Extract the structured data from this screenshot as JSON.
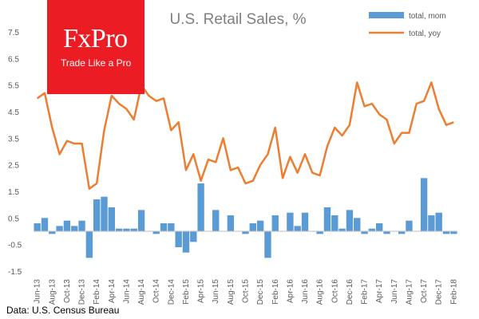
{
  "brand": {
    "name": "FxPro",
    "tagline": "Trade Like a Pro",
    "color": "#ec1c24"
  },
  "source": "Data: U.S. Census Bureau",
  "chart_data": {
    "type": "bar+line",
    "title": "U.S. Retail Sales, %",
    "ylim": [
      -1.5,
      7.5
    ],
    "yticks": [
      "7.5",
      "6.5",
      "5.5",
      "4.5",
      "3.5",
      "2.5",
      "1.5",
      "0.5",
      "-0.5",
      "-1.5"
    ],
    "ytick_values": [
      7.5,
      6.5,
      5.5,
      4.5,
      3.5,
      2.5,
      1.5,
      0.5,
      -0.5,
      -1.5
    ],
    "grid": false,
    "legend_position": "top-right",
    "categories": [
      "Jun-13",
      "Jul-13",
      "Aug-13",
      "Sep-13",
      "Oct-13",
      "Nov-13",
      "Dec-13",
      "Jan-14",
      "Feb-14",
      "Mar-14",
      "Apr-14",
      "May-14",
      "Jun-14",
      "Jul-14",
      "Aug-14",
      "Sep-14",
      "Oct-14",
      "Nov-14",
      "Dec-14",
      "Jan-15",
      "Feb-15",
      "Mar-15",
      "Apr-15",
      "May-15",
      "Jun-15",
      "Jul-15",
      "Aug-15",
      "Sep-15",
      "Oct-15",
      "Nov-15",
      "Dec-15",
      "Jan-16",
      "Feb-16",
      "Mar-16",
      "Apr-16",
      "May-16",
      "Jun-16",
      "Jul-16",
      "Aug-16",
      "Sep-16",
      "Oct-16",
      "Nov-16",
      "Dec-16",
      "Jan-17",
      "Feb-17",
      "Mar-17",
      "Apr-17",
      "May-17",
      "Jun-17",
      "Jul-17",
      "Aug-17",
      "Sep-17",
      "Oct-17",
      "Nov-17",
      "Dec-17",
      "Jan-18",
      "Feb-18"
    ],
    "xtick_labels": [
      "Jun-13",
      "Aug-13",
      "Oct-13",
      "Dec-13",
      "Feb-14",
      "Apr-14",
      "Jun-14",
      "Aug-14",
      "Oct-14",
      "Dec-14",
      "Feb-15",
      "Apr-15",
      "Jun-15",
      "Aug-15",
      "Oct-15",
      "Dec-15",
      "Feb-16",
      "Apr-16",
      "Jun-16",
      "Aug-16",
      "Oct-16",
      "Dec-16",
      "Feb-17",
      "Apr-17",
      "Jun-17",
      "Aug-17",
      "Oct-17",
      "Dec-17",
      "Feb-18"
    ],
    "series": [
      {
        "name": "total, mom",
        "type": "bar",
        "color": "#5b9bd5",
        "values": [
          0.3,
          0.5,
          -0.1,
          0.2,
          0.4,
          0.2,
          0.4,
          -1.0,
          1.2,
          1.3,
          0.9,
          0.1,
          0.1,
          0.1,
          0.8,
          0.0,
          -0.1,
          0.3,
          0.3,
          -0.6,
          -0.8,
          -0.4,
          1.8,
          0.0,
          0.8,
          0.0,
          0.6,
          0.0,
          -0.1,
          0.3,
          0.4,
          -1.0,
          0.6,
          0.0,
          0.7,
          0.2,
          0.7,
          0.0,
          -0.1,
          0.9,
          0.6,
          0.1,
          0.8,
          0.5,
          -0.1,
          0.1,
          0.3,
          -0.1,
          0.0,
          -0.1,
          0.4,
          0.0,
          2.0,
          0.6,
          0.7,
          -0.1,
          -0.1
        ]
      },
      {
        "name": "total, yoy",
        "type": "line",
        "color": "#ed7d31",
        "values": [
          5.0,
          5.2,
          3.9,
          2.9,
          3.4,
          3.3,
          3.3,
          1.6,
          1.8,
          3.8,
          5.1,
          4.8,
          4.6,
          4.2,
          5.5,
          5.1,
          4.9,
          5.0,
          3.8,
          4.1,
          2.3,
          2.9,
          1.9,
          2.7,
          2.6,
          3.5,
          2.3,
          2.4,
          1.8,
          1.9,
          2.5,
          2.9,
          3.9,
          2.0,
          2.8,
          2.2,
          2.9,
          2.2,
          2.1,
          3.2,
          3.9,
          3.6,
          4.0,
          5.6,
          4.7,
          4.8,
          4.4,
          4.2,
          3.3,
          3.7,
          3.7,
          4.8,
          4.9,
          5.6,
          4.6,
          4.0,
          4.1
        ]
      }
    ]
  }
}
